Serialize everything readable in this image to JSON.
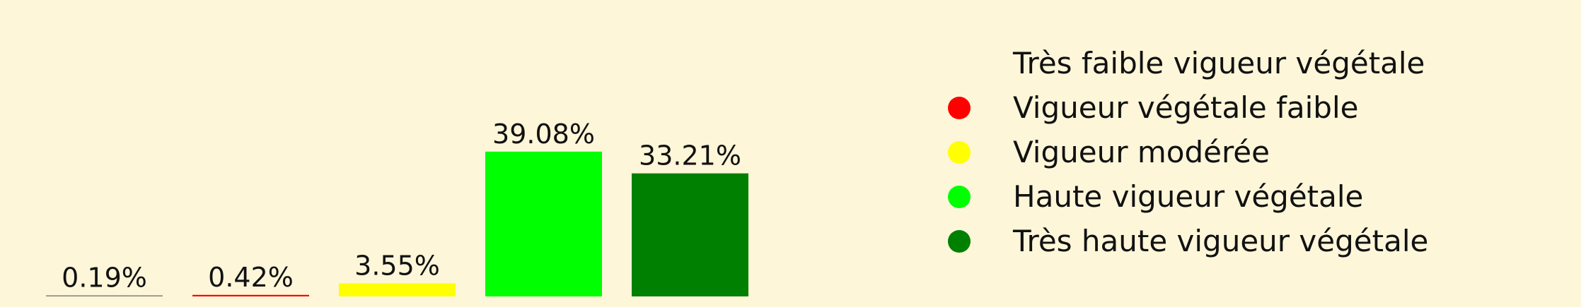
{
  "chart_data": {
    "type": "bar",
    "ylim": [
      0,
      47
    ],
    "bars": [
      {
        "value": 0.19,
        "label": "0.19%",
        "color": "#808080"
      },
      {
        "value": 0.42,
        "label": "0.42%",
        "color": "#ff0000"
      },
      {
        "value": 3.55,
        "label": "3.55%",
        "color": "#ffff00"
      },
      {
        "value": 39.08,
        "label": "39.08%",
        "color": "#00ff00"
      },
      {
        "value": 33.21,
        "label": "33.21%",
        "color": "#008000"
      }
    ],
    "legend": {
      "placement": "right",
      "entries": [
        {
          "label": "Très faible vigueur végétale",
          "color": "#fdf6d9"
        },
        {
          "label": "Vigueur végétale faible",
          "color": "#ff0000"
        },
        {
          "label": "Vigueur modérée",
          "color": "#ffff00"
        },
        {
          "label": "Haute vigueur végétale",
          "color": "#00ff00"
        },
        {
          "label": "Très haute vigueur végétale",
          "color": "#008000"
        }
      ]
    }
  }
}
